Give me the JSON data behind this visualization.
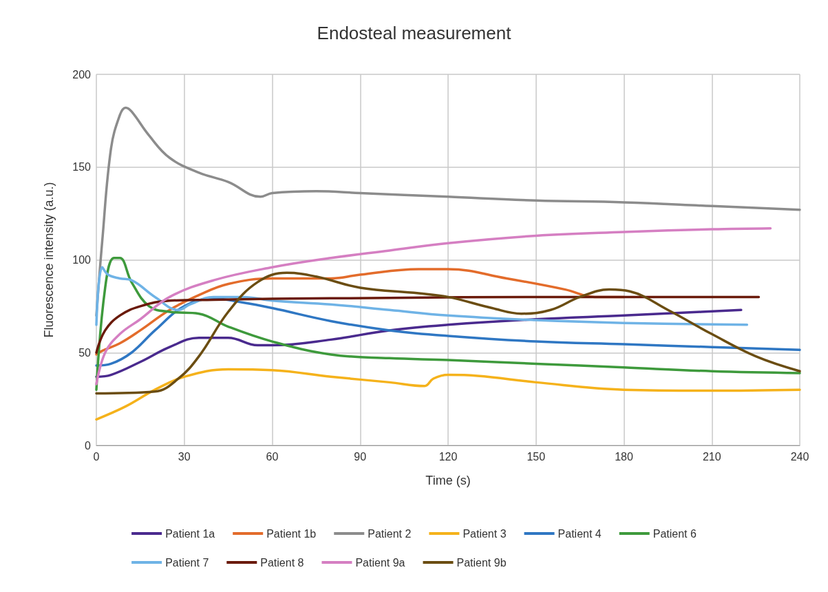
{
  "chart_data": {
    "type": "line",
    "title": "Endosteal measurement",
    "xlabel": "Time (s)",
    "ylabel": "Fluorescence intensity (a.u.)",
    "xlim": [
      0,
      240
    ],
    "xticks": [
      0,
      30,
      60,
      90,
      120,
      150,
      180,
      210,
      240
    ],
    "ylim": [
      0,
      200
    ],
    "yticks": [
      0,
      50,
      100,
      150,
      200
    ],
    "grid": true,
    "legend": "bottom",
    "marker": "none",
    "line_style": "solid",
    "series": [
      {
        "name": "Patient 1a",
        "color": "#4a2a8e",
        "x": [
          0,
          5,
          15,
          25,
          35,
          45,
          55,
          60,
          80,
          100,
          120,
          150,
          180,
          200,
          220
        ],
        "values": [
          37,
          38,
          45,
          53,
          58,
          58,
          54,
          54,
          57,
          62,
          65,
          68,
          70,
          71.5,
          73
        ]
      },
      {
        "name": "Patient 1b",
        "color": "#e36c2b",
        "x": [
          0,
          2,
          8,
          15,
          25,
          35,
          45,
          60,
          80,
          90,
          110,
          120,
          140,
          160,
          170,
          180
        ],
        "values": [
          49,
          51,
          55,
          62,
          73,
          81,
          87,
          90,
          90,
          92,
          95,
          95,
          90,
          84,
          80,
          80
        ]
      },
      {
        "name": "Patient 2",
        "color": "#8c8c8c",
        "x": [
          0,
          2,
          5,
          8,
          10,
          12,
          18,
          25,
          35,
          45,
          56,
          60,
          75,
          90,
          120,
          150,
          180,
          210,
          240
        ],
        "values": [
          70,
          110,
          160,
          178,
          182,
          180,
          167,
          155,
          147,
          142,
          134,
          136,
          137,
          136,
          134,
          132,
          131,
          129,
          127
        ]
      },
      {
        "name": "Patient 3",
        "color": "#f5b21b",
        "x": [
          0,
          10,
          20,
          30,
          45,
          60,
          80,
          100,
          112,
          115,
          120,
          130,
          150,
          180,
          210,
          240
        ],
        "values": [
          14,
          21,
          30,
          37,
          41,
          40.5,
          37,
          34,
          32,
          36,
          38,
          37.5,
          34,
          30,
          29.5,
          30
        ]
      },
      {
        "name": "Patient 4",
        "color": "#2f77c3",
        "x": [
          0,
          5,
          12,
          20,
          30,
          40,
          50,
          60,
          80,
          100,
          120,
          150,
          180,
          210,
          240
        ],
        "values": [
          43,
          44,
          50,
          62,
          75,
          79,
          77,
          74,
          67,
          62,
          59,
          56,
          54.5,
          53,
          51.5
        ]
      },
      {
        "name": "Patient 6",
        "color": "#3e9a3c",
        "x": [
          0,
          3,
          6,
          8,
          12,
          18,
          25,
          35,
          45,
          60,
          80,
          100,
          120,
          150,
          180,
          210,
          240
        ],
        "values": [
          30,
          85,
          101,
          101,
          88,
          75,
          72,
          71,
          64,
          56,
          49,
          47,
          46,
          44,
          42,
          40,
          39
        ]
      },
      {
        "name": "Patient 7",
        "color": "#6fb3e6",
        "x": [
          0,
          2,
          4,
          8,
          12,
          20,
          28,
          32,
          40,
          50,
          60,
          80,
          100,
          120,
          150,
          180,
          222
        ],
        "values": [
          65,
          96,
          92,
          90,
          89,
          80,
          73,
          76,
          80,
          80,
          78,
          76,
          73,
          70,
          67.5,
          66,
          65
        ]
      },
      {
        "name": "Patient 8",
        "color": "#6a1a0a",
        "x": [
          0,
          3,
          8,
          15,
          25,
          40,
          60,
          100,
          150,
          226
        ],
        "values": [
          50,
          62,
          70,
          75,
          78,
          78.5,
          79,
          79.5,
          80,
          80
        ]
      },
      {
        "name": "Patient 9a",
        "color": "#d57fc2",
        "x": [
          0,
          3,
          8,
          15,
          25,
          40,
          60,
          80,
          100,
          120,
          150,
          180,
          210,
          230
        ],
        "values": [
          33,
          50,
          60,
          68,
          80,
          89,
          96,
          101,
          105,
          109,
          113,
          115,
          116.5,
          117
        ]
      },
      {
        "name": "Patient 9b",
        "color": "#6b4d12",
        "x": [
          0,
          20,
          28,
          35,
          45,
          55,
          65,
          75,
          90,
          110,
          120,
          135,
          145,
          155,
          165,
          175,
          182,
          195,
          210,
          225,
          240
        ],
        "values": [
          28,
          29,
          36,
          48,
          72,
          88,
          93,
          91,
          85,
          82,
          80,
          74,
          71,
          73,
          80,
          84,
          83,
          73,
          60,
          48,
          40
        ]
      }
    ]
  }
}
